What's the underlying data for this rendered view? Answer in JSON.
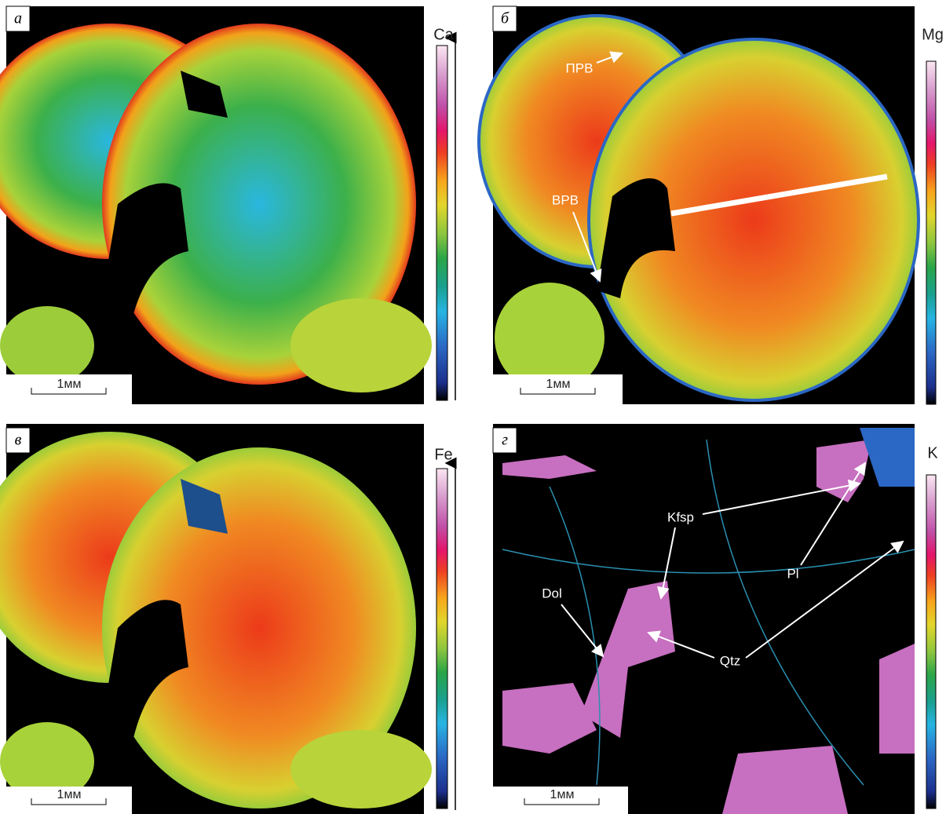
{
  "panels": [
    {
      "letter": "а",
      "element": "Ca",
      "scale_bar": "1мм"
    },
    {
      "letter": "б",
      "element": "Mg",
      "scale_bar": "1мм",
      "annotations": [
        "ПРВ",
        "ВРВ"
      ]
    },
    {
      "letter": "в",
      "element": "Fe",
      "scale_bar": "1мм"
    },
    {
      "letter": "г",
      "element": "K",
      "scale_bar": "1мм",
      "annotations": [
        "Kfsp",
        "Dol",
        "Pl",
        "Qtz"
      ]
    }
  ]
}
